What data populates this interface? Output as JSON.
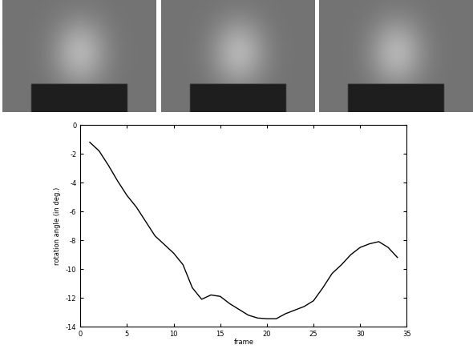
{
  "chart_data": {
    "type": "line",
    "xlabel": "frame",
    "ylabel": "rotation angle (in deg.)",
    "x": [
      1,
      2,
      3,
      4,
      5,
      6,
      7,
      8,
      9,
      10,
      11,
      12,
      13,
      14,
      15,
      16,
      17,
      18,
      19,
      20,
      21,
      22,
      23,
      24,
      25,
      26,
      27,
      28,
      29,
      30,
      31,
      32,
      33,
      34
    ],
    "values": [
      -1.2,
      -1.8,
      -2.8,
      -3.9,
      -4.9,
      -5.7,
      -6.7,
      -7.7,
      -8.3,
      -8.9,
      -9.7,
      -11.3,
      -12.1,
      -11.8,
      -11.9,
      -12.4,
      -12.8,
      -13.2,
      -13.4,
      -13.45,
      -13.45,
      -13.1,
      -12.85,
      -12.6,
      -12.2,
      -11.3,
      -10.3,
      -9.7,
      -9.0,
      -8.5,
      -8.25,
      -8.1,
      -8.5,
      -9.2
    ],
    "color": "#000000",
    "xlim": [
      0,
      35
    ],
    "xticks": [
      0,
      5,
      10,
      15,
      20,
      25,
      30,
      35
    ],
    "ylim": [
      -14,
      0
    ],
    "yticks": [
      -14,
      -12,
      -10,
      -8,
      -6,
      -4,
      -2,
      0
    ],
    "grid": false
  }
}
